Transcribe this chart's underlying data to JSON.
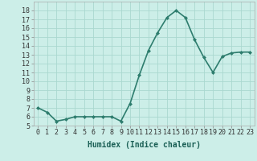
{
  "x": [
    0,
    1,
    2,
    3,
    4,
    5,
    6,
    7,
    8,
    9,
    10,
    11,
    12,
    13,
    14,
    15,
    16,
    17,
    18,
    19,
    20,
    21,
    22,
    23
  ],
  "y": [
    7.0,
    6.5,
    5.5,
    5.7,
    6.0,
    6.0,
    6.0,
    6.0,
    6.0,
    5.5,
    7.5,
    10.7,
    13.5,
    15.5,
    17.2,
    18.0,
    17.2,
    14.7,
    12.7,
    11.0,
    12.8,
    13.2,
    13.3,
    13.3
  ],
  "line_color": "#2e7d6e",
  "marker": "D",
  "marker_size": 2,
  "bg_color": "#cceee8",
  "grid_color": "#aad8d0",
  "xlabel": "Humidex (Indice chaleur)",
  "xlabel_fontsize": 7,
  "xlim": [
    -0.5,
    23.5
  ],
  "ylim": [
    5,
    19
  ],
  "yticks": [
    5,
    6,
    7,
    8,
    9,
    10,
    11,
    12,
    13,
    14,
    15,
    16,
    17,
    18
  ],
  "xticks": [
    0,
    1,
    2,
    3,
    4,
    5,
    6,
    7,
    8,
    9,
    10,
    11,
    12,
    13,
    14,
    15,
    16,
    17,
    18,
    19,
    20,
    21,
    22,
    23
  ],
  "tick_fontsize": 6,
  "line_width": 1.2
}
